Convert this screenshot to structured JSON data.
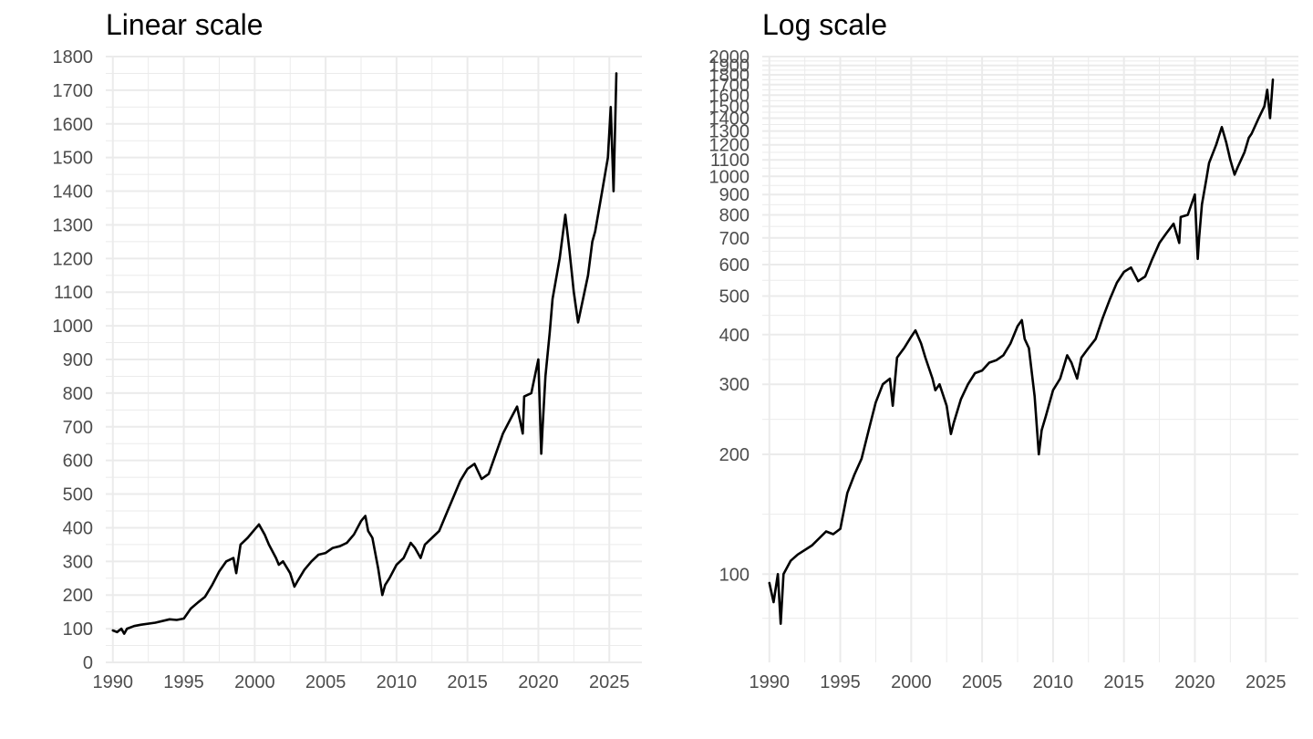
{
  "chart_data": [
    {
      "type": "line",
      "title": "Linear scale",
      "scale": "linear",
      "grid": true,
      "xlim": [
        1989.5,
        2027.3
      ],
      "ylim": [
        0,
        1800
      ],
      "x_ticks": [
        "1990",
        "1995",
        "2000",
        "2005",
        "2010",
        "2015",
        "2020",
        "2025"
      ],
      "y_ticks": [
        "0",
        "100",
        "200",
        "300",
        "400",
        "500",
        "600",
        "700",
        "800",
        "900",
        "1000",
        "1100",
        "1200",
        "1300",
        "1400",
        "1500",
        "1600",
        "1700",
        "1800"
      ],
      "series": [
        {
          "color": "#000000",
          "x": [
            1990.0,
            1990.3,
            1990.6,
            1990.8,
            1991.0,
            1991.5,
            1992.0,
            1993.0,
            1994.0,
            1994.5,
            1995.0,
            1995.5,
            1996.0,
            1996.5,
            1997.0,
            1997.5,
            1998.0,
            1998.5,
            1998.7,
            1999.0,
            1999.5,
            2000.0,
            2000.3,
            2000.7,
            2001.0,
            2001.5,
            2001.7,
            2002.0,
            2002.5,
            2002.8,
            2003.0,
            2003.5,
            2004.0,
            2004.5,
            2005.0,
            2005.5,
            2006.0,
            2006.5,
            2007.0,
            2007.5,
            2007.8,
            2008.0,
            2008.3,
            2008.7,
            2009.0,
            2009.2,
            2009.5,
            2010.0,
            2010.5,
            2011.0,
            2011.3,
            2011.7,
            2012.0,
            2012.5,
            2013.0,
            2013.5,
            2014.0,
            2014.5,
            2015.0,
            2015.5,
            2016.0,
            2016.5,
            2017.0,
            2017.5,
            2018.0,
            2018.5,
            2018.9,
            2019.0,
            2019.5,
            2020.0,
            2020.2,
            2020.3,
            2020.5,
            2020.8,
            2021.0,
            2021.5,
            2021.9,
            2022.2,
            2022.5,
            2022.8,
            2023.0,
            2023.5,
            2023.8,
            2024.0,
            2024.5,
            2024.9,
            2025.1,
            2025.3,
            2025.5
          ],
          "y": [
            95,
            90,
            100,
            85,
            100,
            108,
            112,
            118,
            128,
            126,
            130,
            160,
            178,
            195,
            230,
            270,
            300,
            310,
            265,
            350,
            370,
            395,
            410,
            380,
            350,
            310,
            290,
            300,
            265,
            225,
            240,
            275,
            300,
            320,
            325,
            340,
            345,
            355,
            380,
            420,
            435,
            390,
            370,
            280,
            200,
            230,
            250,
            290,
            310,
            355,
            340,
            310,
            350,
            370,
            390,
            440,
            490,
            540,
            575,
            590,
            545,
            560,
            620,
            680,
            720,
            760,
            680,
            790,
            800,
            900,
            620,
            700,
            850,
            980,
            1080,
            1200,
            1330,
            1220,
            1100,
            1010,
            1050,
            1150,
            1250,
            1280,
            1400,
            1500,
            1650,
            1400,
            1750
          ]
        }
      ]
    },
    {
      "type": "line",
      "title": "Log scale",
      "scale": "log",
      "grid": true,
      "xlim": [
        1989.5,
        2027.3
      ],
      "ylim": [
        60,
        2000
      ],
      "x_ticks": [
        "1990",
        "1995",
        "2000",
        "2005",
        "2010",
        "2015",
        "2020",
        "2025"
      ],
      "y_ticks": [
        "100",
        "200",
        "300",
        "400",
        "500",
        "600",
        "700",
        "800",
        "900",
        "1000",
        "1100",
        "1200",
        "1300",
        "1400",
        "1500",
        "1600",
        "1700",
        "1800",
        "1900",
        "2000"
      ],
      "series": [
        {
          "color": "#000000",
          "x": [
            1990.0,
            1990.3,
            1990.6,
            1990.8,
            1991.0,
            1991.5,
            1992.0,
            1993.0,
            1994.0,
            1994.5,
            1995.0,
            1995.5,
            1996.0,
            1996.5,
            1997.0,
            1997.5,
            1998.0,
            1998.5,
            1998.7,
            1999.0,
            1999.5,
            2000.0,
            2000.3,
            2000.7,
            2001.0,
            2001.5,
            2001.7,
            2002.0,
            2002.5,
            2002.8,
            2003.0,
            2003.5,
            2004.0,
            2004.5,
            2005.0,
            2005.5,
            2006.0,
            2006.5,
            2007.0,
            2007.5,
            2007.8,
            2008.0,
            2008.3,
            2008.7,
            2009.0,
            2009.2,
            2009.5,
            2010.0,
            2010.5,
            2011.0,
            2011.3,
            2011.7,
            2012.0,
            2012.5,
            2013.0,
            2013.5,
            2014.0,
            2014.5,
            2015.0,
            2015.5,
            2016.0,
            2016.5,
            2017.0,
            2017.5,
            2018.0,
            2018.5,
            2018.9,
            2019.0,
            2019.5,
            2020.0,
            2020.2,
            2020.3,
            2020.5,
            2020.8,
            2021.0,
            2021.5,
            2021.9,
            2022.2,
            2022.5,
            2022.8,
            2023.0,
            2023.5,
            2023.8,
            2024.0,
            2024.5,
            2024.9,
            2025.1,
            2025.3,
            2025.5
          ],
          "y": [
            95,
            85,
            100,
            75,
            100,
            108,
            112,
            118,
            128,
            126,
            130,
            160,
            178,
            195,
            230,
            270,
            300,
            310,
            265,
            350,
            370,
            395,
            410,
            380,
            350,
            310,
            290,
            300,
            265,
            225,
            240,
            275,
            300,
            320,
            325,
            340,
            345,
            355,
            380,
            420,
            435,
            390,
            370,
            280,
            200,
            230,
            250,
            290,
            310,
            355,
            340,
            310,
            350,
            370,
            390,
            440,
            490,
            540,
            575,
            590,
            545,
            560,
            620,
            680,
            720,
            760,
            680,
            790,
            800,
            900,
            620,
            700,
            850,
            980,
            1080,
            1200,
            1330,
            1220,
            1100,
            1010,
            1050,
            1150,
            1250,
            1280,
            1400,
            1500,
            1650,
            1400,
            1750
          ]
        }
      ]
    }
  ]
}
